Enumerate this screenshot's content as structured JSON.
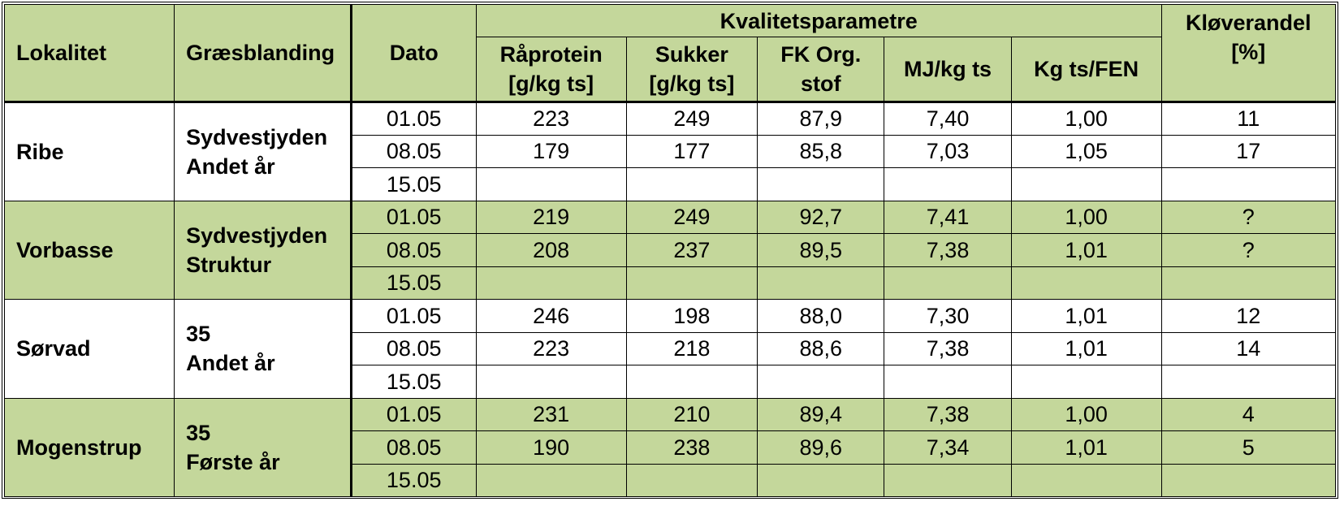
{
  "headers": {
    "lokalitet": "Lokalitet",
    "graesblanding": "Græsblanding",
    "dato": "Dato",
    "kvalitet": "Kvalitetsparametre",
    "raaprotein_1": "Råprotein",
    "raaprotein_2": "[g/kg ts]",
    "sukker_1": "Sukker",
    "sukker_2": "[g/kg ts]",
    "fk_1": "FK Org.",
    "fk_2": "stof",
    "mj": "MJ/kg ts",
    "kgts": "Kg ts/FEN",
    "klover_1": "Kløverandel",
    "klover_2": "[%]"
  },
  "groups": [
    {
      "lokalitet": "Ribe",
      "blanding_1": "Sydvestjyden",
      "blanding_2": "Andet år",
      "rows": [
        {
          "dato": "01.05",
          "raaprotein": "223",
          "sukker": "249",
          "fk": "87,9",
          "mj": "7,40",
          "kgts": "1,00",
          "klover": "11"
        },
        {
          "dato": "08.05",
          "raaprotein": "179",
          "sukker": "177",
          "fk": "85,8",
          "mj": "7,03",
          "kgts": "1,05",
          "klover": "17"
        },
        {
          "dato": "15.05",
          "raaprotein": "",
          "sukker": "",
          "fk": "",
          "mj": "",
          "kgts": "",
          "klover": ""
        }
      ]
    },
    {
      "lokalitet": "Vorbasse",
      "blanding_1": "Sydvestjyden",
      "blanding_2": "Struktur",
      "rows": [
        {
          "dato": "01.05",
          "raaprotein": "219",
          "sukker": "249",
          "fk": "92,7",
          "mj": "7,41",
          "kgts": "1,00",
          "klover": "?"
        },
        {
          "dato": "08.05",
          "raaprotein": "208",
          "sukker": "237",
          "fk": "89,5",
          "mj": "7,38",
          "kgts": "1,01",
          "klover": "?"
        },
        {
          "dato": "15.05",
          "raaprotein": "",
          "sukker": "",
          "fk": "",
          "mj": "",
          "kgts": "",
          "klover": ""
        }
      ]
    },
    {
      "lokalitet": "Sørvad",
      "blanding_1": "35",
      "blanding_2": "Andet år",
      "rows": [
        {
          "dato": "01.05",
          "raaprotein": "246",
          "sukker": "198",
          "fk": "88,0",
          "mj": "7,30",
          "kgts": "1,01",
          "klover": "12"
        },
        {
          "dato": "08.05",
          "raaprotein": "223",
          "sukker": "218",
          "fk": "88,6",
          "mj": "7,38",
          "kgts": "1,01",
          "klover": "14"
        },
        {
          "dato": "15.05",
          "raaprotein": "",
          "sukker": "",
          "fk": "",
          "mj": "",
          "kgts": "",
          "klover": ""
        }
      ]
    },
    {
      "lokalitet": "Mogenstrup",
      "blanding_1": "35",
      "blanding_2": "Første år",
      "rows": [
        {
          "dato": "01.05",
          "raaprotein": "231",
          "sukker": "210",
          "fk": "89,4",
          "mj": "7,38",
          "kgts": "1,00",
          "klover": "4"
        },
        {
          "dato": "08.05",
          "raaprotein": "190",
          "sukker": "238",
          "fk": "89,6",
          "mj": "7,34",
          "kgts": "1,01",
          "klover": "5"
        },
        {
          "dato": "15.05",
          "raaprotein": "",
          "sukker": "",
          "fk": "",
          "mj": "",
          "kgts": "",
          "klover": ""
        }
      ]
    }
  ],
  "colors": {
    "header_green": "#c4d79b",
    "row_green": "#c4d79b",
    "row_white": "#ffffff"
  }
}
